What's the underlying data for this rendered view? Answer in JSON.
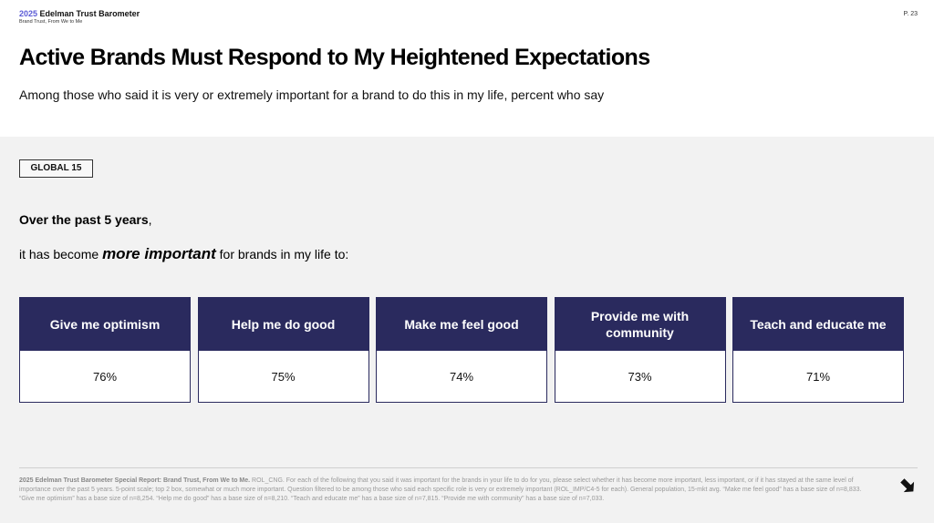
{
  "header": {
    "brand_year": "2025",
    "brand_name": "Edelman Trust Barometer",
    "brand_sub": "Brand Trust, From We to Me",
    "page_number": "P. 23",
    "title": "Active Brands Must Respond to My Heightened Expectations",
    "subtitle": "Among those who said it is very or extremely important for a brand to do this in my life, percent who say"
  },
  "badge": "GLOBAL 15",
  "lead": {
    "line1_bold": "Over the past 5 years",
    "line1_tail": ",",
    "line2_pre": "it has become ",
    "line2_emph": "more important",
    "line2_post": " for brands in my life to:"
  },
  "cards": [
    {
      "label": "Give me optimism",
      "value": "76%"
    },
    {
      "label": "Help me do good",
      "value": "75%"
    },
    {
      "label": "Make me feel good",
      "value": "74%"
    },
    {
      "label": "Provide me with community",
      "value": "73%"
    },
    {
      "label": "Teach and educate me",
      "value": "71%"
    }
  ],
  "footnote": {
    "source_bold": "2025 Edelman Trust Barometer Special Report: Brand Trust, From We to Me.",
    "text": " ROL_CNG. For each of the following that you said it was important for the brands in your life to do for you, please select whether it has become more important, less important, or if it has stayed at the same level of importance over the past 5 years. 5-point scale; top 2 box, somewhat or much more important. Question filtered to be among those who said each specific role is very or extremely important (ROL_IMP/C4-5 for each). General population, 15-mkt avg. “Make me feel good” has a base size of n=8,833. “Give me optimism” has a base size of n=8,254. “Help me do good” has a base size of n=8,210. “Teach and educate me” has a base size of n=7,815. “Provide me with community” has a base size of n=7,033."
  },
  "colors": {
    "card_header": "#2a2a5e",
    "brand_year": "#5a5ad6"
  },
  "icons": {
    "next": "arrow-right-icon"
  }
}
